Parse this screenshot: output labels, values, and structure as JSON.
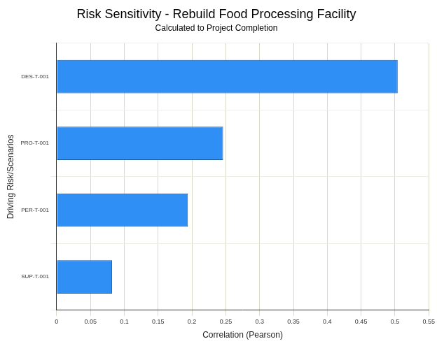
{
  "chart_data": {
    "type": "bar",
    "orientation": "horizontal",
    "title": "Risk Sensitivity - Rebuild Food Processing Facility",
    "subtitle": "Calculated to Project Completion",
    "xlabel": "Correlation (Pearson)",
    "ylabel": "Driving Risk/Scenarios",
    "categories": [
      "DES-T-001",
      "PRO-T-001",
      "PER-T-001",
      "SUP-T-001"
    ],
    "values": [
      0.504,
      0.246,
      0.194,
      0.082
    ],
    "color": "#2f8ff5",
    "xlim": [
      0,
      0.55
    ],
    "xticks": [
      0,
      0.05,
      0.1,
      0.15,
      0.2,
      0.25,
      0.3,
      0.35,
      0.4,
      0.45,
      0.5,
      0.55
    ],
    "grid": true
  }
}
